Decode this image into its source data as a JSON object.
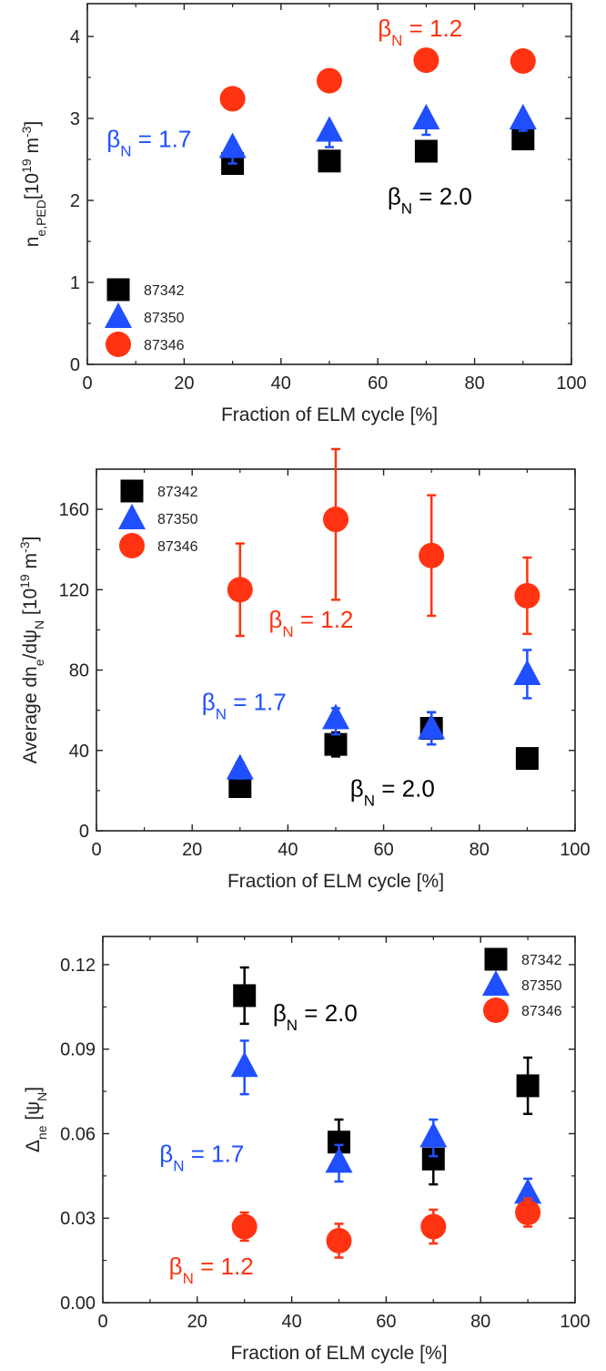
{
  "colors": {
    "black": "#000000",
    "blue": "#1f4fff",
    "red": "#ff3311"
  },
  "chart_data": [
    {
      "type": "scatter",
      "xlabel": "Fraction of ELM cycle [%]",
      "ylabel_main": "n",
      "ylabel_sub": "e,PED",
      "ylabel_unit_pre": "[10",
      "ylabel_unit_exp": "19",
      "ylabel_unit_mid": " m",
      "ylabel_unit_exp2": "-3",
      "ylabel_unit_post": "]",
      "xlim": [
        0,
        100
      ],
      "ylim": [
        0,
        4.4
      ],
      "xticks": [
        0,
        20,
        40,
        60,
        80,
        100
      ],
      "yticks": [
        0,
        1,
        2,
        3,
        4
      ],
      "legend_position": "bottom-left",
      "series": [
        {
          "name": "87342",
          "marker": "square",
          "color": "#000000",
          "x": [
            30,
            50,
            70,
            90
          ],
          "y": [
            2.45,
            2.48,
            2.6,
            2.75
          ],
          "err_lo": [
            0.1,
            0.1,
            0.05,
            0.1
          ],
          "err_hi": [
            0.1,
            0.1,
            0.05,
            0.1
          ]
        },
        {
          "name": "87350",
          "marker": "triangle",
          "color": "#1f4fff",
          "x": [
            30,
            50,
            70,
            90
          ],
          "y": [
            2.65,
            2.85,
            3.0,
            3.0
          ],
          "err_lo": [
            0.2,
            0.2,
            0.2,
            0.15
          ],
          "err_hi": [
            0.05,
            0.05,
            0.05,
            0.05
          ]
        },
        {
          "name": "87346",
          "marker": "circle",
          "color": "#ff3311",
          "x": [
            30,
            50,
            70,
            90
          ],
          "y": [
            3.24,
            3.46,
            3.71,
            3.7
          ],
          "err_lo": [
            0,
            0,
            0,
            0
          ],
          "err_hi": [
            0,
            0,
            0,
            0
          ]
        }
      ],
      "annotations": [
        {
          "label": "β",
          "sub": "N",
          "text": " = 1.2",
          "color": "#ff3311",
          "x": 60,
          "y": 4.0
        },
        {
          "label": "β",
          "sub": "N",
          "text": " = 1.7",
          "color": "#1f4fff",
          "x": 4,
          "y": 2.65
        },
        {
          "label": "β",
          "sub": "N",
          "text": " = 2.0",
          "color": "#000000",
          "x": 62,
          "y": 1.95
        }
      ]
    },
    {
      "type": "scatter",
      "xlabel": "Fraction of ELM cycle [%]",
      "ylabel_main": "Average dn",
      "ylabel_sub": "e",
      "ylabel_mid": "/dψ",
      "ylabel_sub2": "N",
      "ylabel_unit_pre": " [10",
      "ylabel_unit_exp": "19",
      "ylabel_unit_mid": " m",
      "ylabel_unit_exp2": "-3",
      "ylabel_unit_post": "]",
      "xlim": [
        0,
        100
      ],
      "ylim": [
        0,
        180
      ],
      "xticks": [
        0,
        20,
        40,
        60,
        80,
        100
      ],
      "yticks": [
        0,
        40,
        80,
        120,
        160
      ],
      "legend_position": "top-left",
      "series": [
        {
          "name": "87342",
          "marker": "square",
          "color": "#000000",
          "x": [
            30,
            50,
            70,
            90
          ],
          "y": [
            22,
            43,
            51,
            36
          ],
          "err_lo": [
            3,
            6,
            8,
            2
          ],
          "err_hi": [
            3,
            6,
            8,
            2
          ]
        },
        {
          "name": "87350",
          "marker": "triangle",
          "color": "#1f4fff",
          "x": [
            30,
            50,
            70,
            90
          ],
          "y": [
            31,
            56,
            51,
            78
          ],
          "err_lo": [
            5,
            8,
            8,
            12
          ],
          "err_hi": [
            3,
            5,
            8,
            12
          ]
        },
        {
          "name": "87346",
          "marker": "circle",
          "color": "#ff3311",
          "x": [
            30,
            50,
            70,
            90
          ],
          "y": [
            120,
            155,
            137,
            117
          ],
          "err_lo": [
            23,
            40,
            30,
            19
          ],
          "err_hi": [
            23,
            35,
            30,
            19
          ]
        }
      ],
      "annotations": [
        {
          "label": "β",
          "sub": "N",
          "text": " = 1.2",
          "color": "#ff3311",
          "x": 36,
          "y": 101
        },
        {
          "label": "β",
          "sub": "N",
          "text": " = 1.7",
          "color": "#1f4fff",
          "x": 22,
          "y": 60
        },
        {
          "label": "β",
          "sub": "N",
          "text": " = 2.0",
          "color": "#000000",
          "x": 53,
          "y": 17
        }
      ]
    },
    {
      "type": "scatter",
      "xlabel": "Fraction of ELM cycle [%]",
      "ylabel_main": "Δ",
      "ylabel_sub": "ne",
      "ylabel_unit_pre": " [ψ",
      "ylabel_unit_sub": "N",
      "ylabel_unit_post": "]",
      "xlim": [
        0,
        100
      ],
      "ylim": [
        0,
        0.13
      ],
      "xticks": [
        0,
        20,
        40,
        60,
        80,
        100
      ],
      "yticks": [
        0,
        0.03,
        0.06,
        0.09,
        0.12
      ],
      "ytick_labels": [
        "0.00",
        "0.03",
        "0.06",
        "0.09",
        "0.12"
      ],
      "legend_position": "top-right",
      "series": [
        {
          "name": "87342",
          "marker": "square",
          "color": "#000000",
          "x": [
            30,
            50,
            70,
            90
          ],
          "y": [
            0.109,
            0.057,
            0.051,
            0.077
          ],
          "err_lo": [
            0.01,
            0.008,
            0.009,
            0.01
          ],
          "err_hi": [
            0.01,
            0.008,
            0.009,
            0.01
          ]
        },
        {
          "name": "87350",
          "marker": "triangle",
          "color": "#1f4fff",
          "x": [
            30,
            50,
            70,
            90
          ],
          "y": [
            0.084,
            0.05,
            0.059,
            0.039
          ],
          "err_lo": [
            0.01,
            0.007,
            0.007,
            0.004
          ],
          "err_hi": [
            0.009,
            0.006,
            0.006,
            0.005
          ]
        },
        {
          "name": "87346",
          "marker": "circle",
          "color": "#ff3311",
          "x": [
            30,
            50,
            70,
            90
          ],
          "y": [
            0.027,
            0.022,
            0.027,
            0.032
          ],
          "err_lo": [
            0.005,
            0.006,
            0.006,
            0.005
          ],
          "err_hi": [
            0.005,
            0.006,
            0.006,
            0.005
          ]
        }
      ],
      "annotations": [
        {
          "label": "β",
          "sub": "N",
          "text": " = 2.0",
          "color": "#000000",
          "x": 36,
          "y": 0.1
        },
        {
          "label": "β",
          "sub": "N",
          "text": " = 1.7",
          "color": "#1f4fff",
          "x": 12,
          "y": 0.05
        },
        {
          "label": "β",
          "sub": "N",
          "text": " = 1.2",
          "color": "#ff3311",
          "x": 14,
          "y": 0.01
        }
      ]
    }
  ]
}
